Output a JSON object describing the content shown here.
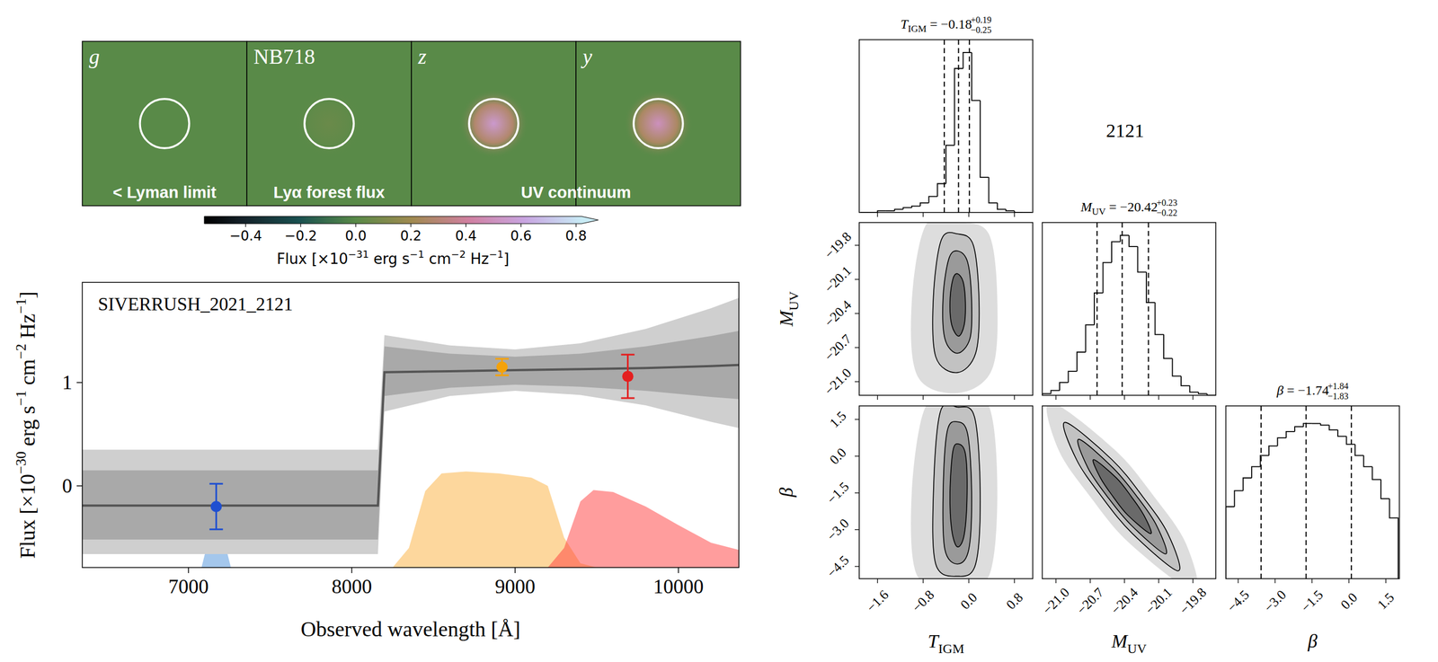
{
  "chart_data": [
    {
      "type": "image",
      "background_flux": 0,
      "panels": [
        {
          "label": "g",
          "peak_flux": 0.0
        },
        {
          "label": "NB718",
          "peak_flux": 0.05
        },
        {
          "label": "z",
          "peak_flux": 0.55
        },
        {
          "label": "y",
          "peak_flux": 0.5
        }
      ],
      "captions": [
        "< Lyman limit",
        "Lyα forest flux",
        "UV continuum"
      ],
      "colorbar": {
        "lim": [
          -0.55,
          0.82
        ],
        "ticks": [
          {
            "value": -0.4,
            "label": "−0.4"
          },
          {
            "value": -0.2,
            "label": "−0.2"
          },
          {
            "value": 0,
            "label": "0.0"
          },
          {
            "value": 0.2,
            "label": "0.2"
          },
          {
            "value": 0.4,
            "label": "0.4"
          },
          {
            "value": 0.6,
            "label": "0.6"
          },
          {
            "value": 0.8,
            "label": "0.8"
          }
        ],
        "label": [
          "Flux [×10",
          "−31",
          " erg s",
          "−1",
          " cm",
          "−2",
          " Hz",
          "−1",
          "]"
        ]
      }
    },
    {
      "type": "line",
      "title": "SIVERRUSH_2021_2121",
      "xlabel": "Observed wavelength [Å]",
      "ylabel": [
        "Flux [×10",
        "−30",
        " erg s",
        "−1",
        " cm",
        "−2",
        " Hz",
        "−1",
        "]"
      ],
      "xlim": [
        6350,
        10370
      ],
      "ylim": [
        -0.79,
        1.97
      ],
      "xticks": [
        7000,
        8000,
        9000,
        10000
      ],
      "yticks": [
        0,
        1
      ],
      "model": {
        "color": "#555555",
        "x": [
          6350,
          8160,
          8200,
          8600,
          9000,
          9400,
          9800,
          10200,
          10370
        ],
        "values": [
          -0.19,
          -0.19,
          1.1,
          1.11,
          1.12,
          1.13,
          1.14,
          1.16,
          1.17
        ],
        "inner_low": [
          -0.52,
          -0.52,
          0.87,
          0.95,
          0.98,
          0.96,
          0.92,
          0.86,
          0.84
        ],
        "inner_high": [
          0.15,
          0.15,
          1.35,
          1.28,
          1.25,
          1.28,
          1.35,
          1.45,
          1.5
        ],
        "outer_low": [
          -0.66,
          -0.66,
          0.72,
          0.87,
          0.92,
          0.88,
          0.78,
          0.62,
          0.56
        ],
        "outer_high": [
          0.35,
          0.35,
          1.46,
          1.36,
          1.32,
          1.38,
          1.52,
          1.72,
          1.82
        ]
      },
      "points": {
        "x": [
          7170,
          8920,
          9690
        ],
        "values": [
          -0.2,
          1.15,
          1.06
        ],
        "errors": [
          0.22,
          0.08,
          0.21
        ],
        "colors": [
          "#1f4fd0",
          "#f5a20a",
          "#e41f1f"
        ]
      },
      "filters": [
        {
          "color": "#4a90d9",
          "x": [
            7080,
            7110,
            7130,
            7150,
            7170,
            7190,
            7210,
            7230,
            7260
          ],
          "values": [
            -0.79,
            -0.6,
            -0.2,
            0.12,
            0.2,
            0.12,
            -0.2,
            -0.6,
            -0.79
          ]
        },
        {
          "color": "#fbb03b",
          "x": [
            8250,
            8350,
            8450,
            8550,
            8700,
            8900,
            9100,
            9200,
            9300,
            9400,
            9500
          ],
          "values": [
            -0.79,
            -0.6,
            -0.05,
            0.12,
            0.14,
            0.12,
            0.08,
            0.0,
            -0.5,
            -0.75,
            -0.79
          ]
        },
        {
          "color": "#ff3b3b",
          "x": [
            9200,
            9300,
            9400,
            9480,
            9600,
            9800,
            10000,
            10200,
            10370
          ],
          "values": [
            -0.79,
            -0.6,
            -0.15,
            -0.04,
            -0.06,
            -0.2,
            -0.38,
            -0.55,
            -0.62
          ]
        }
      ]
    },
    {
      "type": "corner",
      "label": "2121",
      "params": [
        {
          "symbol": "T",
          "sub": "IGM",
          "lim": [
            -1.92,
            1.12
          ],
          "ticks": [
            {
              "value": -1.6,
              "label": "−1.6"
            },
            {
              "value": -0.8,
              "label": "−0.8"
            },
            {
              "value": 0,
              "label": "0.0"
            },
            {
              "value": 0.8,
              "label": "0.8"
            }
          ],
          "quantiles": [
            -0.43,
            -0.18,
            0.01
          ],
          "title": {
            "value": "= −0.18",
            "plus": "+0.19",
            "minus": "−0.25"
          },
          "bins": [
            -1.9,
            -1.75,
            -1.6,
            -1.45,
            -1.3,
            -1.15,
            -1.0,
            -0.85,
            -0.7,
            -0.55,
            -0.4,
            -0.25,
            -0.1,
            0.05,
            0.2,
            0.35,
            0.5,
            0.65,
            0.8,
            0.95,
            1.1
          ],
          "counts": [
            0,
            0,
            1,
            1,
            2,
            3,
            4,
            6,
            10,
            18,
            42,
            90,
            100,
            70,
            22,
            6,
            2,
            1,
            0,
            0
          ],
          "count_lim": [
            0,
            108
          ]
        },
        {
          "symbol": "M",
          "sub": "UV",
          "lim": [
            -21.12,
            -19.6
          ],
          "ticks": [
            {
              "value": -21.0,
              "label": "−21.0"
            },
            {
              "value": -20.7,
              "label": "−20.7"
            },
            {
              "value": -20.4,
              "label": "−20.4"
            },
            {
              "value": -20.1,
              "label": "−20.1"
            },
            {
              "value": -19.8,
              "label": "−19.8"
            }
          ],
          "quantiles": [
            -20.64,
            -20.42,
            -20.19
          ],
          "title": {
            "value": "= −20.42",
            "plus": "+0.23",
            "minus": "−0.22"
          },
          "bins": [
            -21.12,
            -21.044,
            -20.968,
            -20.892,
            -20.816,
            -20.74,
            -20.664,
            -20.588,
            -20.512,
            -20.436,
            -20.36,
            -20.284,
            -20.208,
            -20.132,
            -20.056,
            -19.98,
            -19.904,
            -19.828,
            -19.752,
            -19.676,
            -19.6
          ],
          "counts": [
            1,
            3,
            8,
            15,
            27,
            44,
            64,
            83,
            96,
            100,
            93,
            77,
            58,
            38,
            23,
            12,
            6,
            2,
            1,
            0
          ],
          "count_lim": [
            0,
            108
          ]
        },
        {
          "symbol": "β",
          "lim": [
            -5.0,
            2.05
          ],
          "ticks": [
            {
              "value": -4.5,
              "label": "−4.5"
            },
            {
              "value": -3.0,
              "label": "−3.0"
            },
            {
              "value": -1.5,
              "label": "−1.5"
            },
            {
              "value": 0,
              "label": "0.0"
            },
            {
              "value": 1.5,
              "label": "1.5"
            }
          ],
          "quantiles": [
            -3.57,
            -1.74,
            0.1
          ],
          "title": {
            "value": "= −1.74",
            "plus": "+1.84",
            "minus": "−1.83"
          },
          "bins": [
            -5.0,
            -4.65,
            -4.3,
            -3.95,
            -3.6,
            -3.25,
            -2.9,
            -2.55,
            -2.2,
            -1.85,
            -1.5,
            -1.15,
            -0.8,
            -0.45,
            -0.1,
            0.25,
            0.6,
            0.95,
            1.3,
            1.65,
            2.0
          ],
          "counts": [
            45,
            55,
            63,
            70,
            77,
            83,
            88,
            92,
            95,
            97,
            97,
            96,
            93,
            89,
            84,
            77,
            70,
            62,
            50,
            38
          ],
          "count_lim": [
            0,
            108
          ]
        }
      ],
      "contours": [
        {
          "levels": [
            {
              "x": [
                -0.75,
                -0.2,
                0.35,
                0.5,
                0.4,
                -0.2,
                -0.9,
                -1.0
              ],
              "y": [
                -19.62,
                -19.6,
                -19.7,
                -20.3,
                -20.9,
                -21.1,
                -20.95,
                -20.3
              ]
            },
            {
              "x": [
                -0.48,
                -0.2,
                0.08,
                0.18,
                0.12,
                -0.2,
                -0.58,
                -0.62
              ],
              "y": [
                -19.75,
                -19.7,
                -19.8,
                -20.3,
                -20.75,
                -20.92,
                -20.78,
                -20.25
              ]
            },
            {
              "x": [
                -0.35,
                -0.2,
                -0.02,
                0.05,
                0.02,
                -0.2,
                -0.42,
                -0.45
              ],
              "y": [
                -19.92,
                -19.85,
                -19.95,
                -20.3,
                -20.62,
                -20.75,
                -20.62,
                -20.25
              ]
            },
            {
              "x": [
                -0.28,
                -0.2,
                -0.1,
                -0.06,
                -0.08,
                -0.18,
                -0.3,
                -0.33
              ],
              "y": [
                -20.1,
                -20.05,
                -20.12,
                -20.3,
                -20.5,
                -20.6,
                -20.5,
                -20.3
              ]
            }
          ]
        },
        {
          "levels": [
            {
              "x": [
                -0.75,
                -0.2,
                0.35,
                0.5,
                0.35,
                -0.2,
                -0.9,
                -1.0
              ],
              "y": [
                2.05,
                2.05,
                2.05,
                -1.5,
                -4.9,
                -5.0,
                -4.9,
                -1.5
              ]
            },
            {
              "x": [
                -0.5,
                -0.2,
                0.1,
                0.2,
                0.12,
                -0.2,
                -0.58,
                -0.62
              ],
              "y": [
                1.8,
                2.0,
                1.6,
                -1.5,
                -4.4,
                -4.9,
                -4.4,
                -1.5
              ]
            },
            {
              "x": [
                -0.38,
                -0.2,
                -0.02,
                0.05,
                0.0,
                -0.2,
                -0.42,
                -0.45
              ],
              "y": [
                1.0,
                1.4,
                0.9,
                -1.5,
                -3.8,
                -4.4,
                -3.8,
                -1.5
              ]
            },
            {
              "x": [
                -0.28,
                -0.18,
                -0.06,
                -0.03,
                -0.08,
                -0.2,
                -0.3,
                -0.33
              ],
              "y": [
                0.2,
                0.5,
                0.1,
                -1.5,
                -3.2,
                -3.7,
                -3.0,
                -1.5
              ]
            }
          ]
        },
        {
          "levels": [
            {
              "x": [
                -21.05,
                -20.49,
                -20.14,
                -19.86,
                -19.79,
                -20.35,
                -20.7,
                -20.98
              ],
              "y": [
                2.2,
                0.28,
                -1.65,
                -3.58,
                -5.5,
                -3.58,
                -1.65,
                0.28
              ]
            },
            {
              "x": [
                -20.92,
                -20.51,
                -20.24,
                -20.02,
                -19.93,
                -20.33,
                -20.6,
                -20.82
              ],
              "y": [
                1.38,
                -0.14,
                -1.65,
                -3.16,
                -4.68,
                -3.16,
                -1.65,
                -0.14
              ]
            },
            {
              "x": [
                -20.8,
                -20.5,
                -20.29,
                -20.12,
                -20.04,
                -20.34,
                -20.55,
                -20.72
              ],
              "y": [
                0.69,
                -0.48,
                -1.65,
                -2.82,
                -3.99,
                -2.82,
                -1.65,
                -0.48
              ]
            },
            {
              "x": [
                -20.67,
                -20.47,
                -20.34,
                -20.23,
                -20.17,
                -20.37,
                -20.5,
                -20.61
              ],
              "y": [
                -0.14,
                -0.89,
                -1.65,
                -2.41,
                -3.16,
                -2.41,
                -1.65,
                -0.89
              ]
            }
          ]
        }
      ]
    }
  ]
}
